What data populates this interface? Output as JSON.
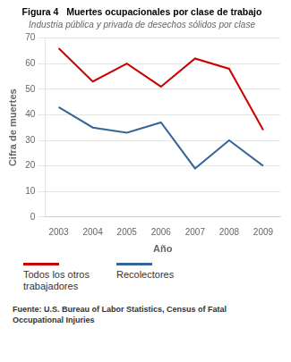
{
  "chart_data": {
    "type": "line",
    "title": "Figura 4   Muertes ocupacionales por clase de trabajo",
    "subtitle": "Industria pública y privada de desechos sólidos por clase",
    "xlabel": "Año",
    "ylabel": "Cifra de muertes",
    "x": [
      2003,
      2004,
      2005,
      2006,
      2007,
      2008,
      2009
    ],
    "series": [
      {
        "name": "Todos los otros\ntrabajadores",
        "color": "#cc0000",
        "values": [
          66,
          53,
          60,
          51,
          62,
          58,
          34
        ]
      },
      {
        "name": "Recolectores",
        "color": "#336699",
        "values": [
          43,
          35,
          33,
          37,
          19,
          30,
          20
        ]
      }
    ],
    "xlim": [
      2002.6,
      2009.5
    ],
    "xticks": [
      2003,
      2004,
      2005,
      2006,
      2007,
      2008,
      2009
    ],
    "ylim": [
      0,
      70
    ],
    "yticks": [
      0,
      10,
      20,
      30,
      40,
      50,
      60,
      70
    ],
    "grid": "y",
    "legend": "bottom",
    "source": "Fuente: U.S. Bureau of Labor Statistics, Census of Fatal\nOccupational Injuries"
  }
}
